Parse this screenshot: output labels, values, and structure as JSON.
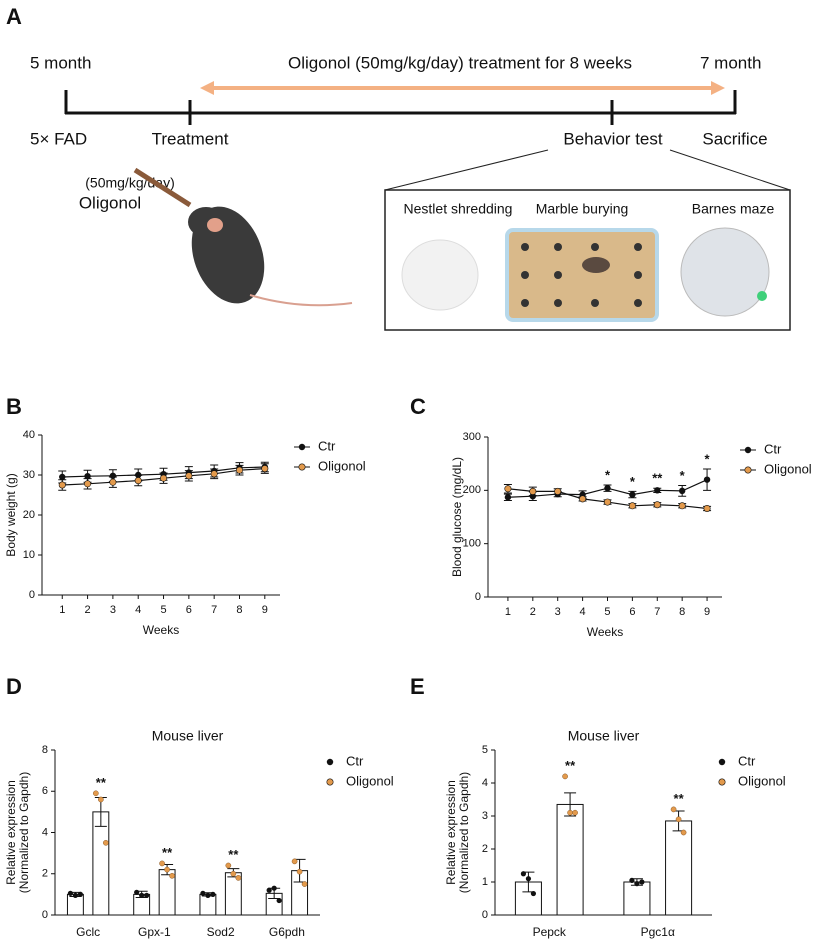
{
  "timeline": {
    "panel": "A",
    "start": "5 month",
    "treatment_text": "Oligonol (50mg/kg/day) treatment for 8 weeks",
    "end": "7 month",
    "model": "5× FAD",
    "treatment": "Treatment",
    "behavior": "Behavior test",
    "sacrifice": "Sacrifice",
    "dose": "(50mg/kg/day)",
    "drug": "Oligonol",
    "tests": [
      "Nestlet shredding",
      "Marble burying",
      "Barnes maze"
    ]
  },
  "chart_data": [
    {
      "panel": "B",
      "type": "line",
      "ylabel": [
        "Body weight (g)"
      ],
      "xlabel": "Weeks",
      "x": [
        1,
        2,
        3,
        4,
        5,
        6,
        7,
        8,
        9
      ],
      "xlim": [
        0.2,
        9.6
      ],
      "xticks": [
        1,
        2,
        3,
        4,
        5,
        6,
        7,
        8,
        9
      ],
      "ylim": [
        0,
        40
      ],
      "yticks": [
        0,
        10,
        20,
        30,
        40
      ],
      "series": [
        {
          "name": "Ctr",
          "color": "#111111",
          "values": [
            29.5,
            29.7,
            29.8,
            30,
            30.2,
            30.6,
            31,
            31.8,
            32
          ],
          "errors": [
            1.5,
            1.5,
            1.5,
            1.5,
            1.5,
            1.5,
            1.5,
            1.3,
            1.2
          ]
        },
        {
          "name": "Oligonol",
          "color": "#e39a4c",
          "values": [
            27.5,
            27.8,
            28.2,
            28.6,
            29.2,
            29.8,
            30.3,
            31.2,
            31.6
          ],
          "errors": [
            1.3,
            1.3,
            1.3,
            1.3,
            1.3,
            1.3,
            1.2,
            1.2,
            1.2
          ]
        }
      ],
      "annotations": []
    },
    {
      "panel": "C",
      "type": "line",
      "ylabel": [
        "Blood glucose (mg/dL)"
      ],
      "xlabel": "Weeks",
      "x": [
        1,
        2,
        3,
        4,
        5,
        6,
        7,
        8,
        9
      ],
      "xlim": [
        0.2,
        9.6
      ],
      "xticks": [
        1,
        2,
        3,
        4,
        5,
        6,
        7,
        8,
        9
      ],
      "ylim": [
        0,
        300
      ],
      "yticks": [
        0,
        100,
        200,
        300
      ],
      "series": [
        {
          "name": "Ctr",
          "color": "#111111",
          "values": [
            187,
            189,
            193,
            192,
            204,
            192,
            200,
            199,
            220
          ],
          "errors": [
            6,
            8,
            5,
            7,
            6,
            6,
            4,
            10,
            20
          ]
        },
        {
          "name": "Oligonol",
          "color": "#e39a4c",
          "values": [
            203,
            198,
            198,
            184,
            178,
            171,
            173,
            171,
            166
          ],
          "errors": [
            8,
            8,
            5,
            4,
            4,
            4,
            4,
            4,
            4
          ]
        }
      ],
      "annotations": [
        {
          "x": 5,
          "text": "*"
        },
        {
          "x": 6,
          "text": "*"
        },
        {
          "x": 7,
          "text": "**"
        },
        {
          "x": 8,
          "text": "*"
        },
        {
          "x": 9,
          "text": "*"
        }
      ]
    },
    {
      "panel": "D",
      "type": "bar",
      "title": "Mouse liver",
      "ylabel": [
        "Relative expression",
        "(Normalized to Gapdh)"
      ],
      "categories": [
        "Gclc",
        "Gpx-1",
        "Sod2",
        "G6pdh"
      ],
      "ylim": [
        0,
        8
      ],
      "yticks": [
        0,
        2,
        4,
        6,
        8
      ],
      "series": [
        {
          "name": "Ctr",
          "color": "#111111",
          "values": [
            1,
            1,
            1,
            1.05
          ],
          "errors": [
            0.1,
            0.15,
            0.08,
            0.25
          ],
          "points": [
            [
              1.05,
              0.95,
              1.0
            ],
            [
              1.1,
              0.95,
              0.95
            ],
            [
              1.05,
              0.95,
              1.0
            ],
            [
              1.2,
              1.3,
              0.7
            ]
          ]
        },
        {
          "name": "Oligonol",
          "color": "#e39a4c",
          "values": [
            5,
            2.2,
            2.05,
            2.15
          ],
          "errors": [
            0.7,
            0.25,
            0.2,
            0.55
          ],
          "points": [
            [
              5.9,
              5.6,
              3.5
            ],
            [
              2.5,
              2.2,
              1.9
            ],
            [
              2.4,
              2.0,
              1.8
            ],
            [
              2.6,
              2.1,
              1.5
            ]
          ]
        }
      ],
      "annotations": [
        {
          "category": 0,
          "text": "**"
        },
        {
          "category": 1,
          "text": "**"
        },
        {
          "category": 2,
          "text": "**"
        }
      ]
    },
    {
      "panel": "E",
      "type": "bar",
      "title": "Mouse liver",
      "ylabel": [
        "Relative expression",
        "(Normalized to Gapdh)"
      ],
      "categories": [
        "Pepck",
        "Pgc1α"
      ],
      "ylim": [
        0,
        5
      ],
      "yticks": [
        0,
        1,
        2,
        3,
        4,
        5
      ],
      "series": [
        {
          "name": "Ctr",
          "color": "#111111",
          "values": [
            1,
            1
          ],
          "errors": [
            0.3,
            0.1
          ],
          "points": [
            [
              1.25,
              1.1,
              0.65
            ],
            [
              1.05,
              0.95,
              1.0
            ]
          ]
        },
        {
          "name": "Oligonol",
          "color": "#e39a4c",
          "values": [
            3.35,
            2.85
          ],
          "errors": [
            0.35,
            0.3
          ],
          "points": [
            [
              4.2,
              3.1,
              3.1
            ],
            [
              3.2,
              2.9,
              2.5
            ]
          ]
        }
      ],
      "annotations": [
        {
          "category": 0,
          "text": "**"
        },
        {
          "category": 1,
          "text": "**"
        }
      ]
    }
  ]
}
